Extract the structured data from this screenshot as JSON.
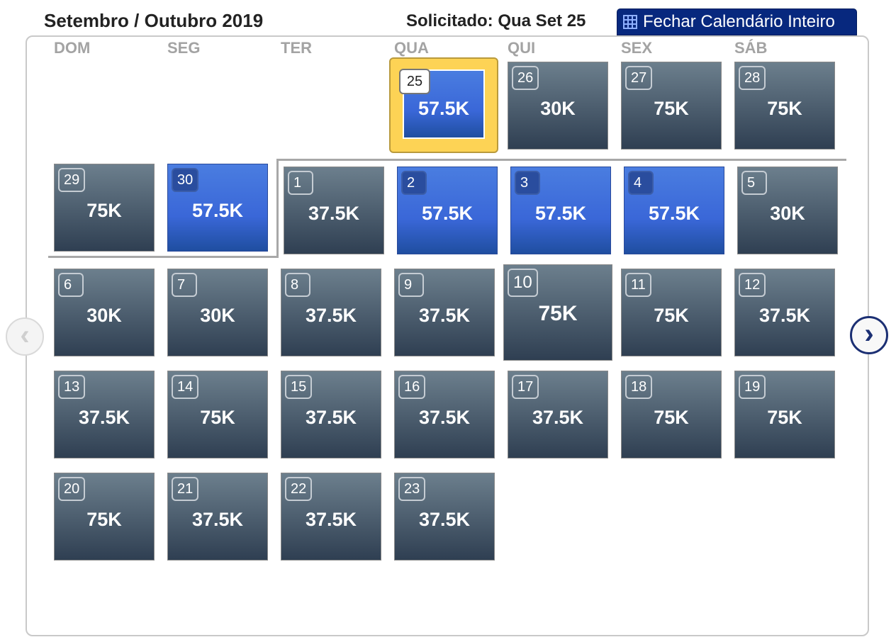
{
  "header": {
    "title": "Setembro / Outubro 2019",
    "requested": "Solicitado: Qua Set 25",
    "close_label": "Fechar Calendário Inteiro"
  },
  "weekdays": [
    "DOM",
    "SEG",
    "TER",
    "QUA",
    "QUI",
    "SEX",
    "SÁB"
  ],
  "days": [
    {
      "day": "25",
      "price": "57.5K",
      "style": "selected"
    },
    {
      "day": "26",
      "price": "30K",
      "style": "gray"
    },
    {
      "day": "27",
      "price": "75K",
      "style": "gray"
    },
    {
      "day": "28",
      "price": "75K",
      "style": "gray"
    },
    {
      "day": "29",
      "price": "75K",
      "style": "gray"
    },
    {
      "day": "30",
      "price": "57.5K",
      "style": "blue"
    },
    {
      "day": "1",
      "price": "37.5K",
      "style": "gray"
    },
    {
      "day": "2",
      "price": "57.5K",
      "style": "blue"
    },
    {
      "day": "3",
      "price": "57.5K",
      "style": "blue"
    },
    {
      "day": "4",
      "price": "57.5K",
      "style": "blue"
    },
    {
      "day": "5",
      "price": "30K",
      "style": "gray"
    },
    {
      "day": "6",
      "price": "30K",
      "style": "gray"
    },
    {
      "day": "7",
      "price": "30K",
      "style": "gray"
    },
    {
      "day": "8",
      "price": "37.5K",
      "style": "gray"
    },
    {
      "day": "9",
      "price": "37.5K",
      "style": "gray"
    },
    {
      "day": "10",
      "price": "75K",
      "style": "hover"
    },
    {
      "day": "11",
      "price": "75K",
      "style": "gray"
    },
    {
      "day": "12",
      "price": "37.5K",
      "style": "gray"
    },
    {
      "day": "13",
      "price": "37.5K",
      "style": "gray"
    },
    {
      "day": "14",
      "price": "75K",
      "style": "gray"
    },
    {
      "day": "15",
      "price": "37.5K",
      "style": "gray"
    },
    {
      "day": "16",
      "price": "37.5K",
      "style": "gray"
    },
    {
      "day": "17",
      "price": "37.5K",
      "style": "gray"
    },
    {
      "day": "18",
      "price": "75K",
      "style": "gray"
    },
    {
      "day": "19",
      "price": "75K",
      "style": "gray"
    },
    {
      "day": "20",
      "price": "75K",
      "style": "gray"
    },
    {
      "day": "21",
      "price": "37.5K",
      "style": "gray"
    },
    {
      "day": "22",
      "price": "37.5K",
      "style": "gray"
    },
    {
      "day": "23",
      "price": "37.5K",
      "style": "gray"
    }
  ],
  "nav": {
    "prev_icon": "chevron-left-icon",
    "next_icon": "chevron-right-icon"
  }
}
